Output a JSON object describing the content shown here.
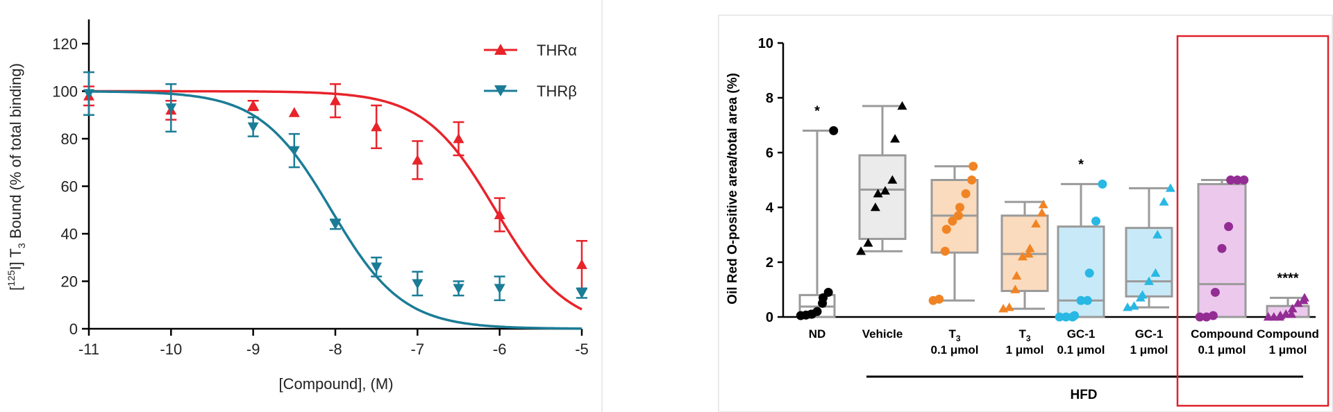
{
  "colors": {
    "thr_alpha": "#e8232a",
    "thr_beta": "#1b7c96",
    "highlight_box": "#e0202a",
    "axis": "#000000"
  },
  "chart_data": [
    {
      "type": "line",
      "subtype": "dose-response",
      "title": "",
      "xlabel": "[Compound], (M)",
      "ylabel_parts": {
        "open": "[",
        "sup": "125",
        "mid": "I] T",
        "sub": "3",
        "close": " Bound (% of total binding)"
      },
      "xlim": [
        -11,
        -5
      ],
      "ylim": [
        0,
        130
      ],
      "x_ticks": [
        -11,
        -10,
        -9,
        -8,
        -7,
        -6,
        -5
      ],
      "x_tick_labels": [
        "-11",
        "-10",
        "-9",
        "-8",
        "-7",
        "-6",
        "-5"
      ],
      "y_ticks": [
        0,
        20,
        40,
        60,
        80,
        100,
        120
      ],
      "y_tick_labels": [
        "0",
        "20",
        "40",
        "60",
        "80",
        "100",
        "120"
      ],
      "legend_position": "top-right",
      "series": [
        {
          "name": "THRα",
          "marker": "triangle-up",
          "color": "#e8232a",
          "points": [
            {
              "x": -11,
              "y": 98,
              "err": 4
            },
            {
              "x": -10,
              "y": 92,
              "err": 4
            },
            {
              "x": -9,
              "y": 94,
              "err": 2
            },
            {
              "x": -8.5,
              "y": 91,
              "err": 0
            },
            {
              "x": -8,
              "y": 96,
              "err": 7
            },
            {
              "x": -7.5,
              "y": 85,
              "err": 9
            },
            {
              "x": -7,
              "y": 71,
              "err": 8
            },
            {
              "x": -6.5,
              "y": 80,
              "err": 7
            },
            {
              "x": -6,
              "y": 48,
              "err": 7
            },
            {
              "x": -5,
              "y": 27,
              "err": 10
            }
          ],
          "fit": {
            "top": 100,
            "bottom": 0,
            "logIC50": -6.05,
            "hill": 1
          }
        },
        {
          "name": "THRβ",
          "marker": "triangle-down",
          "color": "#1b7c96",
          "points": [
            {
              "x": -11,
              "y": 99,
              "err": 9
            },
            {
              "x": -10,
              "y": 93,
              "err": 10
            },
            {
              "x": -9,
              "y": 85,
              "err": 4
            },
            {
              "x": -8.5,
              "y": 75,
              "err": 7
            },
            {
              "x": -8,
              "y": 44,
              "err": 2
            },
            {
              "x": -7.5,
              "y": 26,
              "err": 4
            },
            {
              "x": -7,
              "y": 19,
              "err": 5
            },
            {
              "x": -6.5,
              "y": 17,
              "err": 3
            },
            {
              "x": -6,
              "y": 17,
              "err": 5
            },
            {
              "x": -5,
              "y": 15,
              "err": 2
            }
          ],
          "fit": {
            "top": 100,
            "bottom": 0,
            "logIC50": -8.05,
            "hill": 1
          }
        }
      ]
    },
    {
      "type": "box",
      "title": "",
      "ylabel": "Oil Red O-positive area/total area (%)",
      "ylim": [
        0,
        10
      ],
      "y_ticks": [
        0,
        2,
        4,
        6,
        8,
        10
      ],
      "y_tick_labels": [
        "0",
        "2",
        "4",
        "6",
        "8",
        "10"
      ],
      "group_bar_label": "HFD",
      "groups": [
        {
          "label": "ND",
          "sub": "",
          "marker": "circle",
          "color": "#000000",
          "fill": "#ffffff",
          "min": 0.0,
          "q1": 0.0,
          "median": 0.38,
          "q3": 0.8,
          "max": 6.8,
          "sig": "*",
          "points": [
            0.05,
            0.07,
            0.1,
            0.1,
            0.2,
            0.5,
            0.7,
            0.9,
            6.8
          ]
        },
        {
          "label": "Vehicle",
          "sub": "",
          "marker": "triangle",
          "color": "#000000",
          "fill": "#ebebeb",
          "min": 2.4,
          "q1": 2.85,
          "median": 4.65,
          "q3": 5.9,
          "max": 7.7,
          "sig": "",
          "points": [
            2.4,
            2.7,
            4.0,
            4.5,
            4.6,
            5.0,
            6.5,
            7.7
          ]
        },
        {
          "label": "T",
          "label_sub": "3",
          "sub": "0.1 μmol",
          "marker": "circle",
          "color": "#f08424",
          "fill": "#fbdbbd",
          "min": 0.6,
          "q1": 2.35,
          "median": 3.7,
          "q3": 5.0,
          "max": 5.5,
          "sig": "",
          "points": [
            0.6,
            0.65,
            2.4,
            3.2,
            3.5,
            3.7,
            4.0,
            4.5,
            5.0,
            5.5
          ]
        },
        {
          "label": "T",
          "label_sub": "3",
          "sub": "1 μmol",
          "marker": "triangle",
          "color": "#f08424",
          "fill": "#fbdbbd",
          "min": 0.3,
          "q1": 0.95,
          "median": 2.3,
          "q3": 3.7,
          "max": 4.2,
          "sig": "",
          "points": [
            0.3,
            0.35,
            1.0,
            1.5,
            2.2,
            2.3,
            2.5,
            3.4,
            3.8,
            4.1
          ]
        },
        {
          "label": "GC-1",
          "sub": "0.1 μmol",
          "marker": "circle",
          "color": "#29b8e4",
          "fill": "#c8eaf8",
          "min": 0.0,
          "q1": 0.0,
          "median": 0.6,
          "q3": 3.3,
          "max": 4.85,
          "sig": "*",
          "points": [
            0.0,
            0.0,
            0.0,
            0.05,
            0.6,
            0.6,
            1.6,
            3.5,
            4.85
          ]
        },
        {
          "label": "GC-1",
          "sub": "1 μmol",
          "marker": "triangle",
          "color": "#29b8e4",
          "fill": "#c8eaf8",
          "min": 0.35,
          "q1": 0.75,
          "median": 1.3,
          "q3": 3.25,
          "max": 4.7,
          "sig": "",
          "points": [
            0.35,
            0.4,
            0.7,
            0.8,
            1.3,
            1.6,
            3.0,
            4.2,
            4.7
          ]
        },
        {
          "label": "Compound",
          "sub": "0.1 μmol",
          "marker": "circle",
          "color": "#932d94",
          "fill": "#ecc8ed",
          "min": 0.0,
          "q1": 0.0,
          "median": 1.2,
          "q3": 4.85,
          "max": 5.0,
          "sig": "",
          "points": [
            0.0,
            0.0,
            0.05,
            0.9,
            2.5,
            3.3,
            5.0,
            5.0,
            5.0
          ]
        },
        {
          "label": "Compound",
          "sub": "1 μmol",
          "marker": "triangle",
          "color": "#932d94",
          "fill": "#ecc8ed",
          "min": 0.0,
          "q1": 0.0,
          "median": 0.0,
          "q3": 0.4,
          "max": 0.7,
          "sig": "****",
          "points": [
            0.0,
            0.0,
            0.0,
            0.05,
            0.1,
            0.1,
            0.3,
            0.5,
            0.6,
            0.7
          ]
        }
      ]
    }
  ]
}
